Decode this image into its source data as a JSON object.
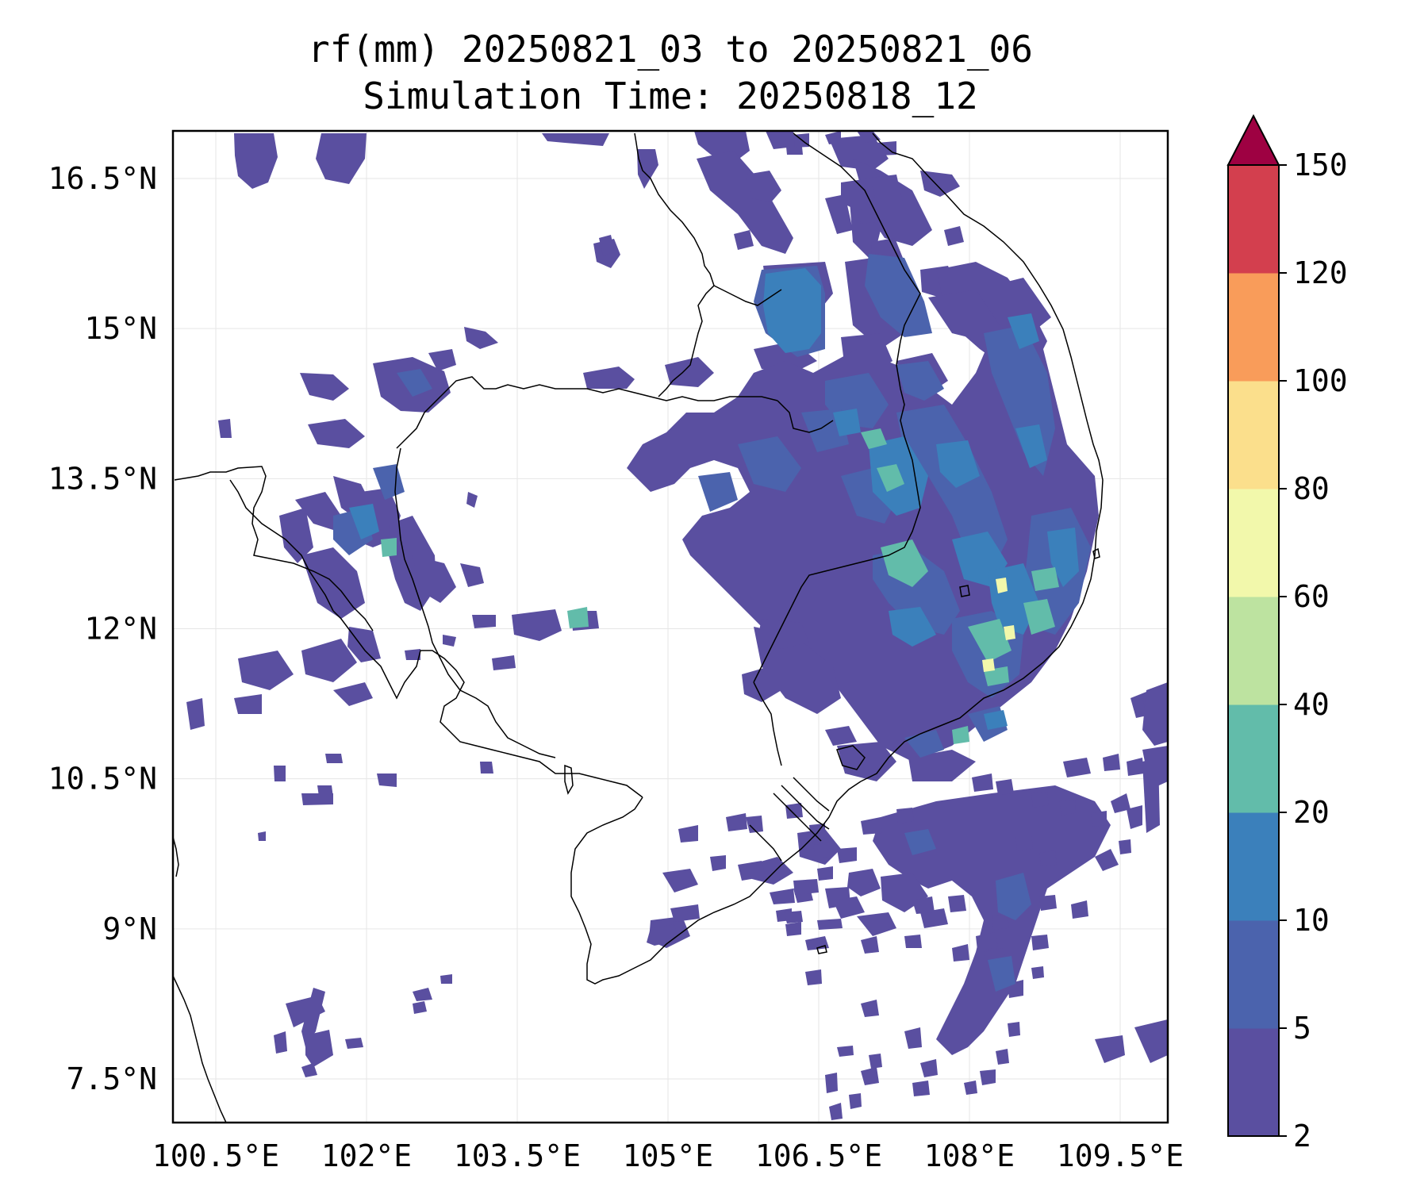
{
  "title": {
    "line1": "rf(mm) 20250821_03 to 20250821_06",
    "line2": "Simulation Time: 20250818_12"
  },
  "map": {
    "lon_ticks": [
      {
        "value": 100.5,
        "label": "100.5°E"
      },
      {
        "value": 102,
        "label": "102°E"
      },
      {
        "value": 103.5,
        "label": "103.5°E"
      },
      {
        "value": 105,
        "label": "105°E"
      },
      {
        "value": 106.5,
        "label": "106.5°E"
      },
      {
        "value": 108,
        "label": "108°E"
      },
      {
        "value": 109.5,
        "label": "109.5°E"
      }
    ],
    "lat_ticks": [
      {
        "value": 16.5,
        "label": "16.5°N"
      },
      {
        "value": 15,
        "label": "15°N"
      },
      {
        "value": 13.5,
        "label": "13.5°N"
      },
      {
        "value": 12,
        "label": "12°N"
      },
      {
        "value": 10.5,
        "label": "10.5°N"
      },
      {
        "value": 9,
        "label": "9°N"
      },
      {
        "value": 7.5,
        "label": "7.5°N"
      }
    ],
    "gridlines": true
  },
  "colorbar": {
    "levels": [
      2,
      5,
      10,
      20,
      40,
      60,
      80,
      100,
      120,
      150
    ],
    "colors": [
      "#5a4fa0",
      "#4b63ad",
      "#3b80bb",
      "#62bcaa",
      "#bde3a0",
      "#f2f8ab",
      "#fbdf8c",
      "#f99c5a",
      "#d33f4e"
    ],
    "extend_color": "#9e0142",
    "extend": "max"
  }
}
